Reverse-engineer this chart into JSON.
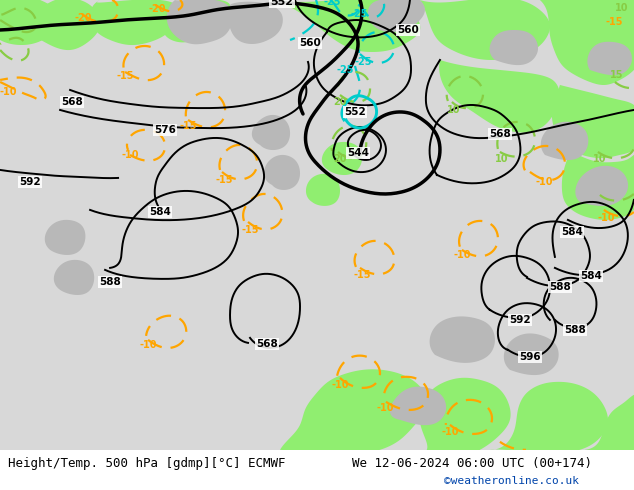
{
  "title_left": "Height/Temp. 500 hPa [gdmp][°C] ECMWF",
  "title_right": "We 12-06-2024 06:00 UTC (00+174)",
  "credit": "©weatheronline.co.uk",
  "bg_light": "#e8e8e8",
  "bg_gray": "#c8c8c8",
  "green_color": "#90ee70",
  "black_contour_color": "#000000",
  "orange_color": "#FFA500",
  "cyan_color": "#00CCCC",
  "lime_color": "#88CC44",
  "title_fontsize": 9,
  "credit_fontsize": 8,
  "credit_color": "#0044AA"
}
